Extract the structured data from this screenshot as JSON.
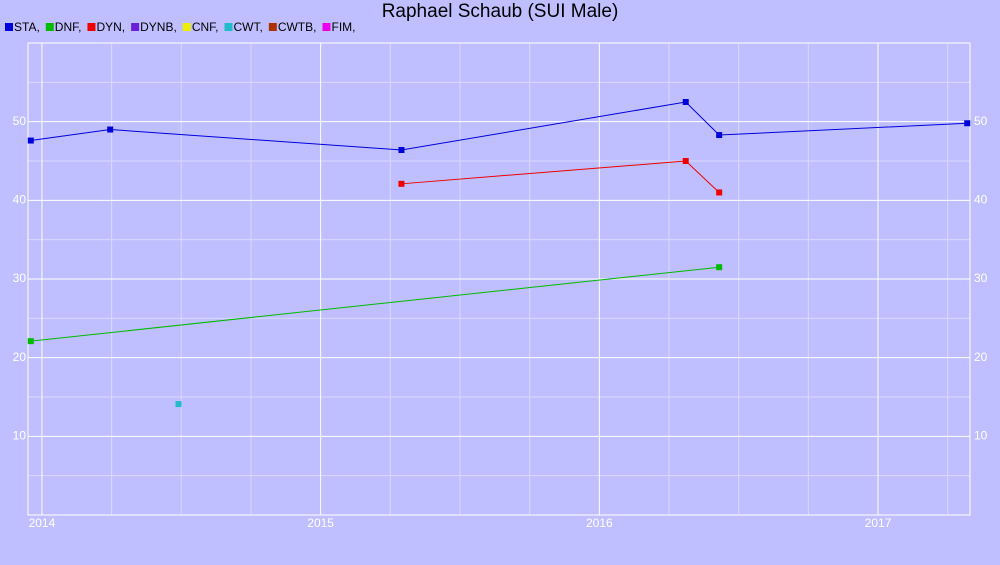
{
  "chart_data": {
    "type": "line",
    "title": "Raphael Schaub (SUI Male)",
    "xlim": [
      2013.95,
      2017.33
    ],
    "xticks": [
      2014,
      2015,
      2016,
      2017
    ],
    "x_minor_ticks": [
      2014.25,
      2014.5,
      2014.75,
      2015.25,
      2015.5,
      2015.75,
      2016.25,
      2016.5,
      2016.75,
      2017.25
    ],
    "ylim": [
      0,
      60
    ],
    "yticks": [
      10,
      20,
      30,
      40,
      50
    ],
    "y_minor_ticks": [
      5,
      15,
      25,
      35,
      45,
      55
    ],
    "grid": true,
    "series": [
      {
        "name": "STA,",
        "color": "#0000dd",
        "x": [
          2013.96,
          2014.245,
          2015.29,
          2016.31,
          2016.43,
          2017.32
        ],
        "values": [
          47.6,
          49.0,
          46.4,
          52.5,
          48.3,
          49.8
        ]
      },
      {
        "name": "DNF,",
        "color": "#00bb00",
        "x": [
          2013.96,
          2016.43
        ],
        "values": [
          22.1,
          31.5
        ]
      },
      {
        "name": "DYN,",
        "color": "#ee0000",
        "x": [
          2015.29,
          2016.31,
          2016.43
        ],
        "values": [
          42.1,
          45.0,
          41.0
        ]
      },
      {
        "name": "DYNB,",
        "color": "#6a1fd8",
        "x": [],
        "values": []
      },
      {
        "name": "CNF,",
        "color": "#eeee00",
        "x": [],
        "values": []
      },
      {
        "name": "CWT,",
        "color": "#22bbcc",
        "x": [
          2014.49
        ],
        "values": [
          14.1
        ]
      },
      {
        "name": "CWTB,",
        "color": "#aa3300",
        "x": [],
        "values": []
      },
      {
        "name": "FIM,",
        "color": "#ee00ee",
        "x": [],
        "values": []
      }
    ]
  }
}
